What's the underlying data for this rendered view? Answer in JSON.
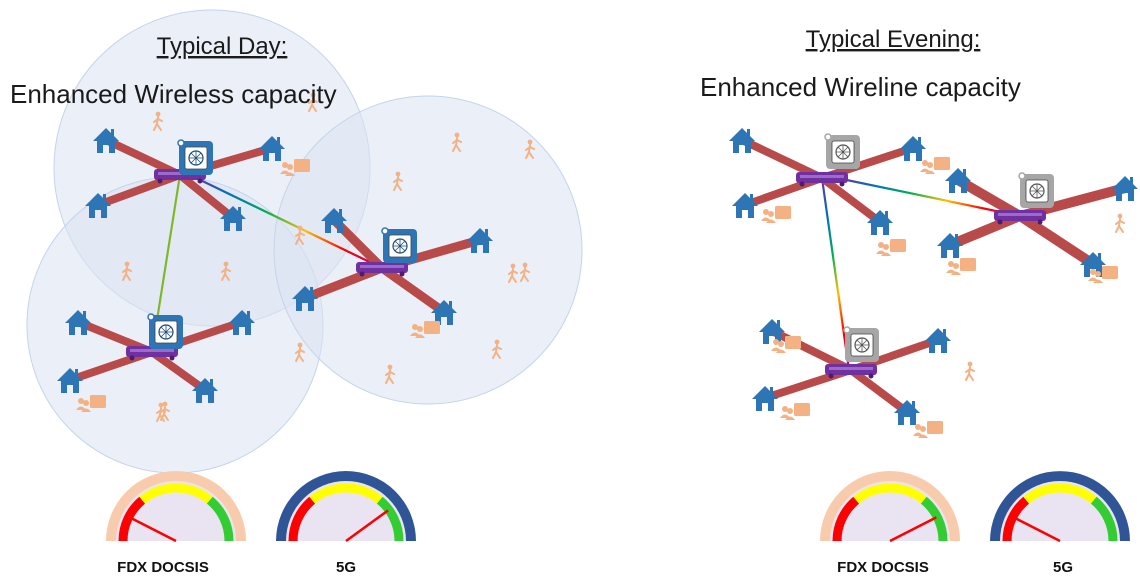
{
  "panels": {
    "day": {
      "title": "Typical Day:",
      "subtitle": "Enhanced Wireless capacity",
      "gauges": [
        {
          "label": "FDX DOCSIS",
          "style": "fdx",
          "needle_fraction": 0.15
        },
        {
          "label": "5G",
          "style": "fiveg",
          "needle_fraction": 0.8
        }
      ]
    },
    "evening": {
      "title": "Typical Evening:",
      "subtitle": "Enhanced Wireline capacity",
      "gauges": [
        {
          "label": "FDX DOCSIS",
          "style": "fdx",
          "needle_fraction": 0.85
        },
        {
          "label": "5G",
          "style": "fiveg",
          "needle_fraction": 0.15
        }
      ]
    }
  },
  "colors": {
    "cable": "#b84a4a",
    "node": "#7030a0",
    "house": "#2e75b6",
    "person": "#f4b183",
    "cell_active": "#2e75b6",
    "cell_inactive": "#a6a6a6",
    "coverage": "#dae3f3",
    "gauge_fdx_rim": "#f8cbad",
    "gauge_5g_rim": "#2f5597",
    "gauge_face": "#eae4f2",
    "gauge_red": "#ff0000",
    "gauge_yellow": "#ffff00",
    "gauge_green": "#33cc33"
  }
}
